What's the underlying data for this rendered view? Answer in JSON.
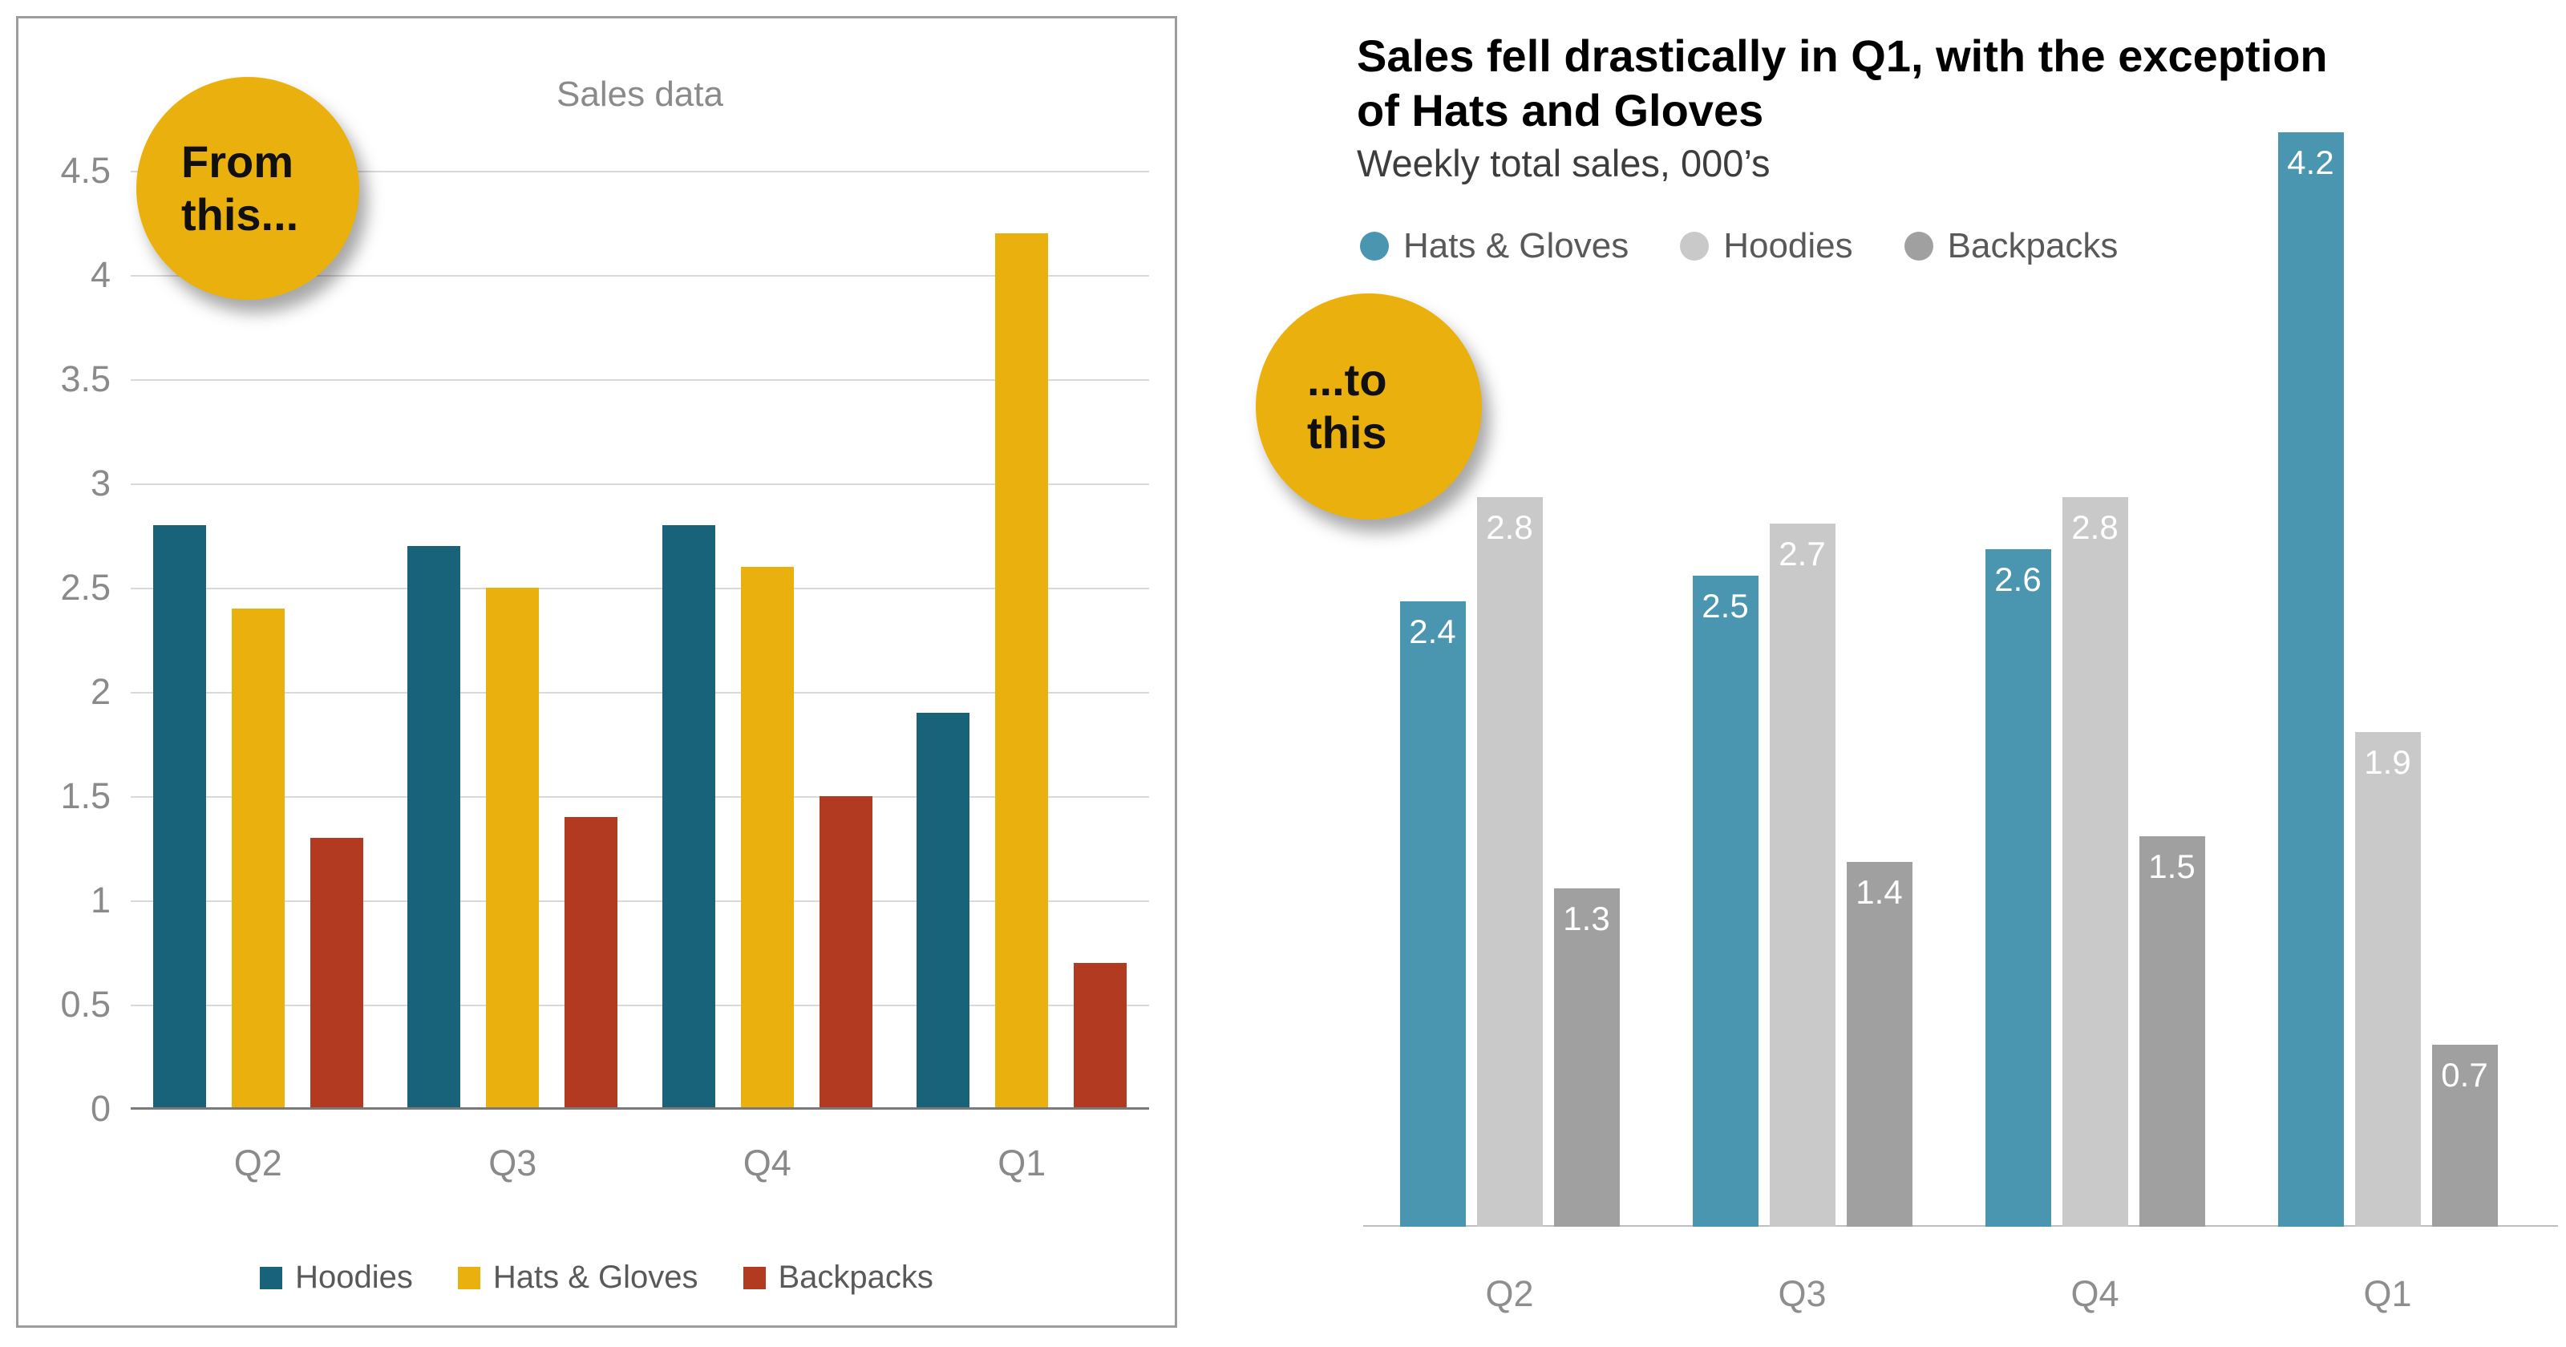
{
  "badges": {
    "from_lines": [
      "From",
      "this..."
    ],
    "to_lines": [
      "...to",
      "this"
    ]
  },
  "colors": {
    "badge": "#EAB00E",
    "grid": "#D9D9D9",
    "axis_text": "#8A8A8A"
  },
  "chart_data": [
    {
      "type": "bar",
      "title": "Sales data",
      "categories": [
        "Q2",
        "Q3",
        "Q4",
        "Q1"
      ],
      "series": [
        {
          "name": "Hoodies",
          "color": "#186379",
          "values": [
            2.8,
            2.7,
            2.8,
            1.9
          ]
        },
        {
          "name": "Hats & Gloves",
          "color": "#EAB00E",
          "values": [
            2.4,
            2.5,
            2.6,
            4.2
          ]
        },
        {
          "name": "Backpacks",
          "color": "#B13A21",
          "values": [
            1.3,
            1.4,
            1.5,
            0.7
          ]
        }
      ],
      "ylim": [
        0,
        4.5
      ],
      "ytick_labels": [
        "0",
        "0.5",
        "1",
        "1.5",
        "2",
        "2.5",
        "3",
        "3.5",
        "4",
        "4.5"
      ],
      "grid": true,
      "legend_position": "bottom",
      "data_labels": false
    },
    {
      "type": "bar",
      "title": "Sales fell drastically in Q1, with the exception of Hats and Gloves",
      "title_lines": [
        "Sales fell drastically in Q1, with the exception",
        "of Hats and Gloves"
      ],
      "subtitle": "Weekly total sales, 000’s",
      "categories": [
        "Q2",
        "Q3",
        "Q4",
        "Q1"
      ],
      "series": [
        {
          "name": "Hats & Gloves",
          "color": "#4A95AF",
          "values": [
            2.4,
            2.5,
            2.6,
            4.2
          ]
        },
        {
          "name": "Hoodies",
          "color": "#C9C9C9",
          "values": [
            2.8,
            2.7,
            2.8,
            1.9
          ]
        },
        {
          "name": "Backpacks",
          "color": "#A0A0A0",
          "values": [
            1.3,
            1.4,
            1.5,
            0.7
          ]
        }
      ],
      "ylim": [
        0,
        4.4
      ],
      "grid": false,
      "legend_position": "top",
      "data_labels": true
    }
  ]
}
